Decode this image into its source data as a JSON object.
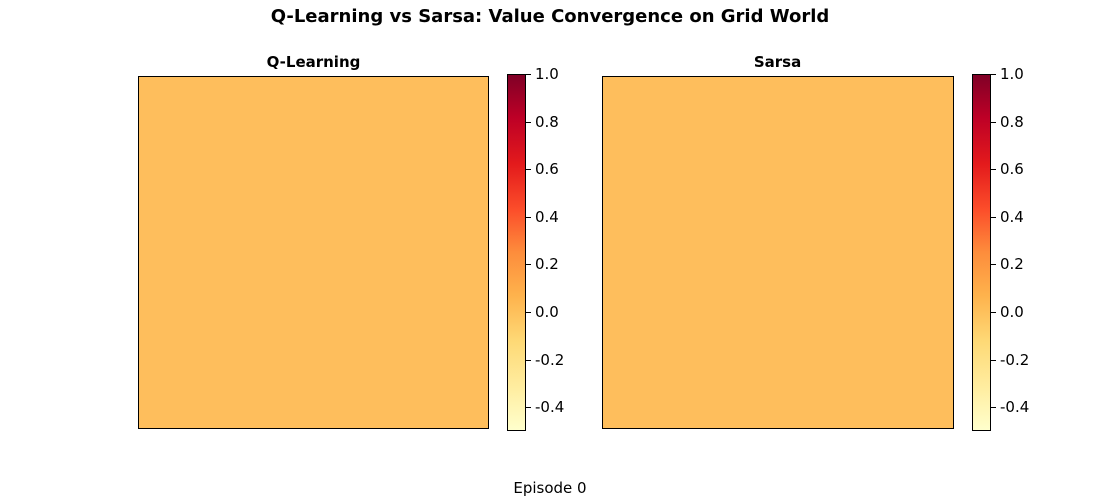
{
  "figure": {
    "title": "Q-Learning vs Sarsa: Value Convergence on Grid World",
    "footer": "Episode 0"
  },
  "panels": [
    {
      "title": "Q-Learning",
      "fill_color": "#febe5c"
    },
    {
      "title": "Sarsa",
      "fill_color": "#febe5c"
    }
  ],
  "colorbar": {
    "ticks": [
      "1.0",
      "0.8",
      "0.6",
      "0.4",
      "0.2",
      "0.0",
      "-0.2",
      "-0.4"
    ],
    "range": [
      -0.5,
      1.0
    ],
    "colormap": "YlOrRd"
  },
  "chart_data": [
    {
      "type": "heatmap",
      "title": "Q-Learning",
      "values": "uniform 0.0 across all grid cells",
      "uniform_value": 0.0,
      "colorbar_range": [
        -0.5,
        1.0
      ],
      "colorbar_ticks": [
        1.0,
        0.8,
        0.6,
        0.4,
        0.2,
        0.0,
        -0.2,
        -0.4
      ],
      "colormap": "YlOrRd",
      "xlabel": "",
      "ylabel": ""
    },
    {
      "type": "heatmap",
      "title": "Sarsa",
      "values": "uniform 0.0 across all grid cells",
      "uniform_value": 0.0,
      "colorbar_range": [
        -0.5,
        1.0
      ],
      "colorbar_ticks": [
        1.0,
        0.8,
        0.6,
        0.4,
        0.2,
        0.0,
        -0.2,
        -0.4
      ],
      "colormap": "YlOrRd",
      "xlabel": "",
      "ylabel": ""
    }
  ]
}
